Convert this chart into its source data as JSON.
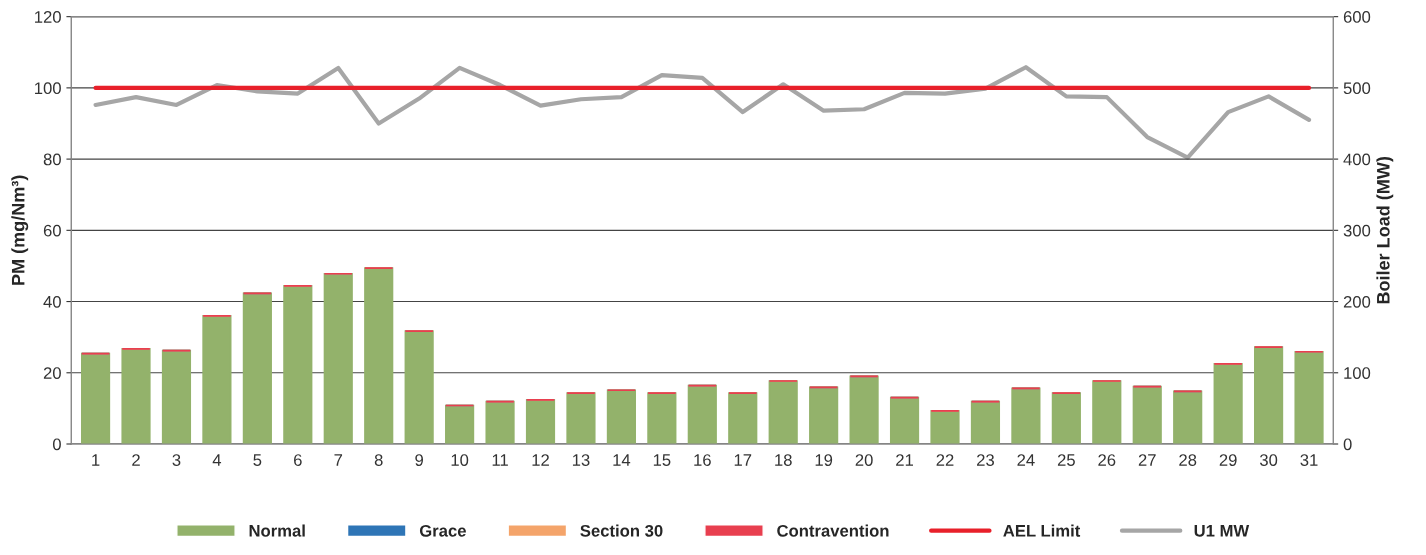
{
  "chart_data": {
    "type": "bar",
    "stacked": true,
    "categories": [
      "1",
      "2",
      "3",
      "4",
      "5",
      "6",
      "7",
      "8",
      "9",
      "10",
      "11",
      "12",
      "13",
      "14",
      "15",
      "16",
      "17",
      "18",
      "19",
      "20",
      "21",
      "22",
      "23",
      "24",
      "25",
      "26",
      "27",
      "28",
      "29",
      "30",
      "31"
    ],
    "series": [
      {
        "name": "Normal",
        "color": "#93b26b",
        "values": [
          25.4,
          26.7,
          26.2,
          36,
          42.3,
          44.4,
          47.8,
          49.4,
          31.7,
          10.8,
          11.9,
          12.4,
          14.3,
          15.1,
          14.3,
          16.4,
          14.3,
          17.7,
          15.9,
          19.0,
          13.0,
          9.3,
          11.9,
          15.6,
          14.3,
          17.7,
          16.1,
          14.8,
          22.5,
          27.2,
          25.9
        ]
      },
      {
        "name": "Grace",
        "color": "#2e75b6",
        "values": [
          0,
          0,
          0,
          0,
          0,
          0,
          0,
          0,
          0,
          0,
          0,
          0,
          0,
          0,
          0,
          0,
          0,
          0,
          0,
          0,
          0,
          0,
          0,
          0,
          0,
          0,
          0,
          0,
          0,
          0,
          0
        ]
      },
      {
        "name": "Section 30",
        "color": "#f4a46a",
        "values": [
          0,
          0,
          0,
          0,
          0,
          0,
          0,
          0,
          0,
          0,
          0,
          0,
          0,
          0,
          0,
          0,
          0,
          0,
          0,
          0,
          0,
          0,
          0,
          0,
          0,
          0,
          0,
          0,
          0,
          0,
          0
        ]
      },
      {
        "name": "Contravention",
        "color": "#e83f4f",
        "values": [
          0,
          0,
          0,
          0,
          0,
          0,
          0,
          0,
          0,
          0,
          0,
          0,
          0,
          0,
          0,
          0,
          0,
          0,
          0,
          0,
          0,
          0,
          0,
          0,
          0,
          0,
          0,
          0,
          0,
          0,
          0
        ]
      },
      {
        "name": "AEL Limit",
        "type": "line",
        "color": "#e8202a",
        "values": [
          100,
          100,
          100,
          100,
          100,
          100,
          100,
          100,
          100,
          100,
          100,
          100,
          100,
          100,
          100,
          100,
          100,
          100,
          100,
          100,
          100,
          100,
          100,
          100,
          100,
          100,
          100,
          100,
          100,
          100,
          100
        ]
      },
      {
        "name": "U1 MW",
        "type": "line",
        "axis": "y2",
        "color": "#a6a6a6",
        "values": [
          476,
          487,
          476,
          504,
          495,
          492,
          528,
          450,
          485,
          528,
          504,
          475,
          484,
          487,
          518,
          514,
          466,
          505,
          468,
          470,
          493,
          492,
          499,
          529,
          488,
          487,
          431,
          402,
          466,
          488,
          455
        ]
      }
    ],
    "ylabel": "PM (mg/Nm³)",
    "y2label": "Boiler Load (MW)",
    "ylim": [
      0,
      120
    ],
    "yticks": [
      0,
      20,
      40,
      60,
      80,
      100,
      120
    ],
    "y2lim": [
      0,
      600
    ],
    "y2ticks": [
      0,
      100,
      200,
      300,
      400,
      500,
      600
    ],
    "grid": "y",
    "legend": "bottom"
  }
}
